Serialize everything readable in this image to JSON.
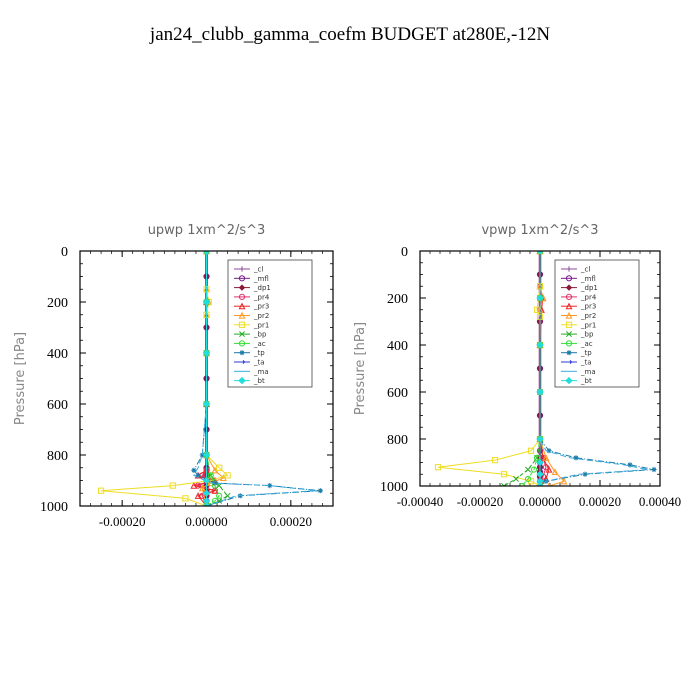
{
  "figure_title": "jan24_clubb_gamma_coefm  BUDGET at280E,-12N",
  "colors": {
    "_cl": "#8a4a9a",
    "_mfl": "#7a1a8a",
    "_dp1": "#8b1a3a",
    "_pr4": "#e0306a",
    "_pr3": "#ee2222",
    "_pr2": "#ff9922",
    "_pr1": "#eedd22",
    "_bp": "#22aa22",
    "_ac": "#33dd33",
    "_tp": "#1a7aa8",
    "_ta": "#2a3ad8",
    "_ma": "#3aaadd",
    "_bt": "#22dddd"
  },
  "chart_data": [
    {
      "type": "line",
      "title": "upwp   1xm^2/s^3",
      "ylabel": "Pressure [hPa]",
      "xlabel": "",
      "ylim": [
        1000,
        0
      ],
      "xlim": [
        -0.0003,
        0.0003
      ],
      "yticks": [
        0,
        200,
        400,
        600,
        800,
        1000
      ],
      "ytick_labels": [
        "0",
        "200",
        "400",
        "600",
        "800",
        "1000"
      ],
      "xticks": [
        -0.0002,
        0,
        0.0002
      ],
      "xtick_labels": [
        "-0.00020",
        "0.00000",
        "0.00020"
      ],
      "legend": "top-right",
      "series": [
        {
          "name": "_cl",
          "x": [
            0,
            0,
            0,
            0,
            0,
            0,
            0,
            0,
            0,
            0,
            0,
            0,
            0,
            0,
            0,
            0,
            0
          ],
          "y": [
            0,
            100,
            200,
            300,
            400,
            500,
            600,
            700,
            800,
            850,
            880,
            900,
            920,
            940,
            960,
            980,
            1000
          ]
        },
        {
          "name": "_mfl",
          "x": [
            0,
            0,
            0,
            0,
            0,
            0,
            0,
            0,
            0,
            0,
            0,
            0,
            0,
            0,
            0,
            0,
            0
          ],
          "y": [
            0,
            100,
            200,
            300,
            400,
            500,
            600,
            700,
            800,
            850,
            880,
            900,
            920,
            940,
            960,
            980,
            1000
          ]
        },
        {
          "name": "_dp1",
          "x": [
            0,
            0,
            0,
            0,
            0,
            0,
            0,
            0,
            0,
            0,
            0,
            0,
            0,
            0,
            0,
            0,
            0
          ],
          "y": [
            0,
            100,
            200,
            300,
            400,
            500,
            600,
            700,
            800,
            850,
            880,
            900,
            920,
            940,
            960,
            980,
            1000
          ]
        },
        {
          "name": "_pr4",
          "x": [
            0,
            0,
            0,
            0,
            0,
            0,
            -1e-05,
            1e-05,
            -2e-05,
            2e-05,
            -1e-05,
            0
          ],
          "y": [
            0,
            200,
            400,
            600,
            800,
            860,
            880,
            900,
            920,
            940,
            960,
            1000
          ]
        },
        {
          "name": "_pr3",
          "x": [
            0,
            0,
            0,
            0,
            0,
            0,
            -2e-05,
            2e-05,
            -3e-05,
            2e-05,
            -2e-05,
            0
          ],
          "y": [
            0,
            200,
            400,
            600,
            800,
            860,
            880,
            900,
            920,
            940,
            960,
            1000
          ]
        },
        {
          "name": "_pr2",
          "x": [
            0,
            0,
            5e-06,
            0,
            0,
            0,
            2e-05,
            4e-05,
            1e-05,
            -1e-05,
            0
          ],
          "y": [
            0,
            150,
            200,
            250,
            400,
            800,
            860,
            890,
            910,
            930,
            1000
          ]
        },
        {
          "name": "_pr1",
          "x": [
            0,
            0,
            5e-06,
            0,
            0,
            0,
            3e-05,
            5e-05,
            1e-05,
            -8e-05,
            -0.00025,
            -5e-05,
            0
          ],
          "y": [
            0,
            150,
            200,
            250,
            400,
            800,
            850,
            880,
            900,
            920,
            940,
            970,
            1000
          ]
        },
        {
          "name": "_bp",
          "x": [
            0,
            0,
            0,
            0,
            0,
            1e-05,
            3e-05,
            5e-05,
            3e-05,
            0
          ],
          "y": [
            0,
            200,
            400,
            600,
            800,
            880,
            920,
            960,
            980,
            1000
          ]
        },
        {
          "name": "_ac",
          "x": [
            0,
            0,
            0,
            0,
            0,
            1e-05,
            2e-05,
            3e-05,
            2e-05,
            0
          ],
          "y": [
            0,
            200,
            400,
            600,
            800,
            880,
            920,
            960,
            980,
            1000
          ]
        },
        {
          "name": "_tp",
          "x": [
            0,
            0,
            0,
            0,
            -1e-05,
            -3e-05,
            -2e-05,
            2e-05,
            0.00015,
            0.00027,
            8e-05,
            0
          ],
          "y": [
            0,
            200,
            400,
            600,
            800,
            860,
            880,
            910,
            920,
            940,
            960,
            1000
          ]
        },
        {
          "name": "_ta",
          "x": [
            0,
            0,
            0,
            0,
            0,
            0,
            0,
            0,
            0
          ],
          "y": [
            0,
            200,
            400,
            600,
            800,
            900,
            950,
            980,
            1000
          ]
        },
        {
          "name": "_ma",
          "x": [
            0,
            0,
            0,
            0,
            -1e-05,
            -2e-05,
            -3e-05,
            1e-05,
            0.00015,
            0.00026,
            7e-05,
            0
          ],
          "y": [
            0,
            200,
            400,
            600,
            800,
            850,
            880,
            910,
            920,
            940,
            960,
            1000
          ]
        },
        {
          "name": "_bt",
          "x": [
            0,
            0,
            0,
            0,
            0,
            0,
            0,
            0,
            0
          ],
          "y": [
            0,
            200,
            400,
            600,
            800,
            900,
            950,
            980,
            1000
          ]
        }
      ]
    },
    {
      "type": "line",
      "title": "vpwp   1xm^2/s^3",
      "ylabel": "Pressure [hPa]",
      "xlabel": "",
      "ylim": [
        1000,
        0
      ],
      "xlim": [
        -0.0004,
        0.0004
      ],
      "yticks": [
        0,
        200,
        400,
        600,
        800,
        1000
      ],
      "ytick_labels": [
        "0",
        "200",
        "400",
        "600",
        "800",
        "1000"
      ],
      "xticks": [
        -0.0004,
        -0.0002,
        0,
        0.0002,
        0.0004
      ],
      "xtick_labels": [
        "-0.00040",
        "-0.00020",
        "0.00000",
        "0.00020",
        "0.00040"
      ],
      "legend": "top-right",
      "series": [
        {
          "name": "_cl",
          "x": [
            0,
            0,
            0,
            0,
            0,
            0,
            0,
            0,
            0,
            0,
            0,
            0,
            0,
            0,
            0,
            0,
            0
          ],
          "y": [
            0,
            100,
            200,
            300,
            400,
            500,
            600,
            700,
            800,
            850,
            880,
            900,
            920,
            940,
            960,
            980,
            1000
          ]
        },
        {
          "name": "_mfl",
          "x": [
            0,
            0,
            0,
            0,
            0,
            0,
            0,
            0,
            0,
            0,
            0,
            0,
            0,
            0,
            0,
            0,
            0
          ],
          "y": [
            0,
            100,
            200,
            300,
            400,
            500,
            600,
            700,
            800,
            850,
            880,
            900,
            920,
            940,
            960,
            980,
            1000
          ]
        },
        {
          "name": "_dp1",
          "x": [
            0,
            0,
            0,
            0,
            0,
            0,
            0,
            0,
            0,
            0,
            0,
            0,
            0,
            0,
            0,
            0,
            0
          ],
          "y": [
            0,
            100,
            200,
            300,
            400,
            500,
            600,
            700,
            800,
            850,
            880,
            900,
            920,
            940,
            960,
            980,
            1000
          ]
        },
        {
          "name": "_pr4",
          "x": [
            0,
            0,
            5e-06,
            0,
            0,
            0,
            1e-05,
            2e-05,
            1e-05,
            0
          ],
          "y": [
            0,
            150,
            200,
            250,
            400,
            800,
            880,
            920,
            960,
            1000
          ]
        },
        {
          "name": "_pr3",
          "x": [
            0,
            0,
            1e-05,
            5e-06,
            0,
            0,
            1e-05,
            3e-05,
            2e-05,
            0
          ],
          "y": [
            0,
            150,
            200,
            250,
            400,
            800,
            880,
            930,
            970,
            1000
          ]
        },
        {
          "name": "_pr2",
          "x": [
            0,
            0,
            1e-05,
            0,
            0,
            0,
            2e-05,
            5e-05,
            8e-05,
            3e-05
          ],
          "y": [
            0,
            150,
            200,
            250,
            400,
            800,
            880,
            940,
            980,
            1000
          ]
        },
        {
          "name": "_pr1",
          "x": [
            0,
            0,
            -1e-05,
            0,
            0,
            0,
            -3e-05,
            -0.00015,
            -0.00034,
            -0.00012,
            -3e-05,
            0
          ],
          "y": [
            0,
            150,
            250,
            280,
            400,
            800,
            850,
            890,
            920,
            950,
            980,
            1000
          ]
        },
        {
          "name": "_bp",
          "x": [
            0,
            0,
            0,
            0,
            0,
            -1e-05,
            -4e-05,
            -8e-05,
            -0.00012
          ],
          "y": [
            0,
            200,
            400,
            600,
            800,
            880,
            930,
            970,
            1000
          ]
        },
        {
          "name": "_ac",
          "x": [
            0,
            0,
            0,
            0,
            0,
            -1e-05,
            -2e-05,
            -4e-05,
            -6e-05
          ],
          "y": [
            0,
            200,
            400,
            600,
            800,
            880,
            930,
            970,
            1000
          ]
        },
        {
          "name": "_tp",
          "x": [
            0,
            0,
            0,
            0,
            0,
            3e-05,
            0.00012,
            0.0003,
            0.00038,
            0.00015,
            2e-05,
            0
          ],
          "y": [
            0,
            200,
            400,
            600,
            800,
            850,
            880,
            910,
            930,
            950,
            980,
            1000
          ]
        },
        {
          "name": "_ta",
          "x": [
            0,
            0,
            0,
            0,
            0,
            0,
            0,
            0,
            0
          ],
          "y": [
            0,
            200,
            400,
            600,
            800,
            900,
            950,
            980,
            1000
          ]
        },
        {
          "name": "_ma",
          "x": [
            0,
            0,
            0,
            0,
            0,
            2e-05,
            0.0001,
            0.00028,
            0.00036,
            0.00013,
            2e-05,
            0
          ],
          "y": [
            0,
            200,
            400,
            600,
            800,
            850,
            880,
            910,
            930,
            950,
            980,
            1000
          ]
        },
        {
          "name": "_bt",
          "x": [
            0,
            0,
            0,
            0,
            0,
            0,
            0,
            0,
            0
          ],
          "y": [
            0,
            200,
            400,
            600,
            800,
            900,
            950,
            980,
            1000
          ]
        }
      ]
    }
  ]
}
